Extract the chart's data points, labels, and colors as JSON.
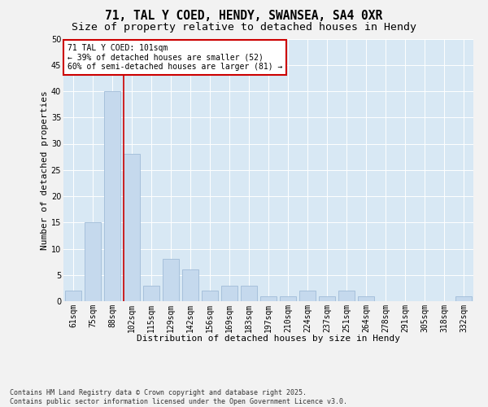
{
  "title": "71, TAL Y COED, HENDY, SWANSEA, SA4 0XR",
  "subtitle": "Size of property relative to detached houses in Hendy",
  "xlabel": "Distribution of detached houses by size in Hendy",
  "ylabel": "Number of detached properties",
  "categories": [
    "61sqm",
    "75sqm",
    "88sqm",
    "102sqm",
    "115sqm",
    "129sqm",
    "142sqm",
    "156sqm",
    "169sqm",
    "183sqm",
    "197sqm",
    "210sqm",
    "224sqm",
    "237sqm",
    "251sqm",
    "264sqm",
    "278sqm",
    "291sqm",
    "305sqm",
    "318sqm",
    "332sqm"
  ],
  "values": [
    2,
    15,
    40,
    28,
    3,
    8,
    6,
    2,
    3,
    3,
    1,
    1,
    2,
    1,
    2,
    1,
    0,
    0,
    0,
    0,
    1
  ],
  "bar_color": "#c5d9ed",
  "bar_edge_color": "#a0bcd8",
  "vline_index": 3,
  "vline_color": "#cc0000",
  "annotation_text": "71 TAL Y COED: 101sqm\n← 39% of detached houses are smaller (52)\n60% of semi-detached houses are larger (81) →",
  "annotation_box_facecolor": "#ffffff",
  "annotation_box_edgecolor": "#cc0000",
  "ylim": [
    0,
    50
  ],
  "yticks": [
    0,
    5,
    10,
    15,
    20,
    25,
    30,
    35,
    40,
    45,
    50
  ],
  "plot_bg": "#d8e8f4",
  "fig_bg": "#f2f2f2",
  "grid_color": "#ffffff",
  "footer": "Contains HM Land Registry data © Crown copyright and database right 2025.\nContains public sector information licensed under the Open Government Licence v3.0.",
  "title_fontsize": 10.5,
  "subtitle_fontsize": 9.5,
  "xlabel_fontsize": 8,
  "ylabel_fontsize": 8,
  "tick_fontsize": 7,
  "footer_fontsize": 6,
  "annot_fontsize": 7
}
